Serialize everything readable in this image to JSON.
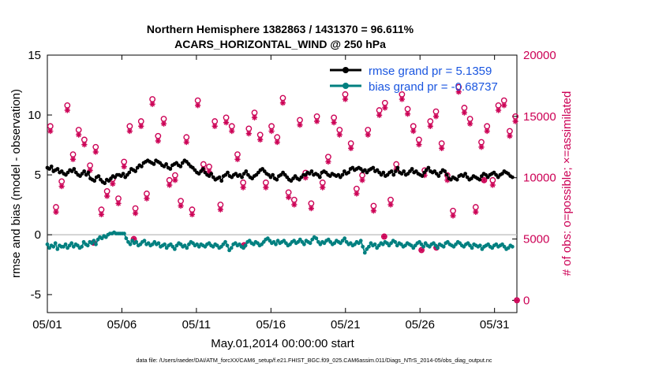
{
  "chart_data": {
    "type": "line",
    "title_line1": "Northern Hemisphere 1382863 / 1431370 = 96.611%",
    "title_line2": "ACARS_HORIZONTAL_WIND @ 250 hPa",
    "xlabel": "May.01,2014 00:00:00 start",
    "ylabel_left": "rmse and bias (model - observation)",
    "ylabel_right": "# of obs: o=possible; ×=assimilated",
    "footnote": "data file: /Users/raeder/DAI/ATM_forcXX/CAM6_setup/f.e21.FHIST_BGC.f09_025.CAM6assim.011/Diags_NTrS_2014-05/obs_diag_output.nc",
    "xlim": [
      0,
      31.5
    ],
    "ylim_left": [
      -6.5,
      15
    ],
    "ylim_right": [
      -1000,
      20000
    ],
    "xticks": [
      0,
      5,
      10,
      15,
      20,
      25,
      30
    ],
    "xtick_labels": [
      "05/01",
      "05/06",
      "05/11",
      "05/16",
      "05/21",
      "05/26",
      "05/31"
    ],
    "yticks_left": [
      -5,
      0,
      5,
      10,
      15
    ],
    "ytick_labels_left": [
      "-5",
      "0",
      "5",
      "10",
      "15"
    ],
    "yticks_right": [
      0,
      5000,
      10000,
      15000,
      20000
    ],
    "ytick_labels_right": [
      "0",
      "5000",
      "10000",
      "15000",
      "20000"
    ],
    "legend": [
      {
        "label": "rmse grand pr = 5.1359",
        "color": "#000000"
      },
      {
        "label": "bias grand pr = -0.68737",
        "color": "#008080"
      }
    ],
    "colors": {
      "rmse": "#000000",
      "bias": "#008080",
      "obs": "#cc0055",
      "label_blue": "#1a56e0",
      "zero_line": "#bbbbbb"
    },
    "series_rmse": {
      "name": "rmse",
      "y": [
        5.6,
        5.5,
        5.7,
        5.3,
        5.4,
        5.5,
        5.2,
        5.3,
        5.1,
        5.0,
        5.2,
        5.4,
        5.3,
        5.5,
        5.2,
        5.0,
        4.9,
        5.1,
        5.3,
        5.0,
        5.2,
        4.7,
        4.6,
        4.5,
        4.8,
        4.9,
        4.6,
        4.4,
        4.3,
        4.6,
        4.5,
        4.7,
        4.9,
        4.8,
        5.0,
        5.0,
        4.9,
        5.1,
        4.8,
        5.0,
        5.2,
        5.5,
        5.4,
        5.3,
        5.6,
        5.8,
        5.7,
        6.0,
        6.1,
        6.2,
        6.1,
        6.0,
        5.9,
        6.2,
        6.1,
        6.0,
        5.8,
        5.7,
        5.9,
        5.6,
        5.5,
        5.8,
        5.9,
        6.0,
        5.8,
        5.7,
        6.0,
        6.2,
        6.1,
        5.9,
        5.7,
        5.6,
        5.4,
        5.2,
        5.1,
        5.3,
        5.5,
        5.2,
        5.0,
        4.9,
        5.1,
        4.8,
        4.6,
        4.7,
        4.8,
        4.5,
        4.9,
        5.0,
        5.2,
        4.9,
        4.8,
        5.0,
        5.1,
        4.9,
        5.0,
        4.8,
        5.1,
        5.3,
        5.0,
        4.8,
        4.7,
        4.9,
        5.0,
        5.2,
        5.4,
        5.5,
        5.3,
        5.1,
        5.0,
        4.8,
        5.0,
        4.7,
        4.6,
        4.9,
        5.0,
        5.2,
        5.0,
        4.8,
        4.6,
        4.5,
        4.7,
        4.9,
        4.7,
        4.6,
        4.8,
        5.0,
        5.0,
        5.2,
        5.1,
        5.3,
        5.0,
        5.1,
        5.0,
        4.8,
        5.2,
        5.3,
        5.2,
        5.0,
        4.9,
        5.1,
        5.0,
        4.9,
        5.0,
        4.8,
        5.0,
        5.3,
        5.1,
        5.2,
        5.5,
        5.6,
        5.4,
        5.5,
        5.6,
        5.5,
        5.3,
        5.4,
        5.2,
        5.4,
        5.5,
        5.6,
        5.3,
        5.4,
        5.2,
        5.0,
        5.2,
        4.9,
        5.0,
        5.2,
        5.3,
        5.0,
        5.3,
        5.6,
        5.2,
        5.1,
        5.3,
        5.0,
        5.1,
        5.3,
        5.5,
        5.2,
        5.3,
        5.1,
        5.0,
        4.9,
        5.2,
        5.4,
        5.6,
        5.3,
        5.2,
        5.3,
        5.1,
        4.9,
        5.2,
        5.4,
        5.3,
        5.0,
        4.7,
        4.6,
        4.8,
        4.7,
        4.6,
        4.9,
        5.0,
        4.9,
        5.1,
        4.8,
        4.6,
        4.7,
        4.9,
        4.8,
        4.7,
        4.6,
        4.9,
        5.1,
        5.0,
        4.8,
        5.0,
        5.1,
        5.2,
        5.0,
        4.8,
        5.0,
        5.1,
        5.3,
        5.2,
        5.1,
        4.9,
        4.8
      ]
    },
    "series_bias": {
      "name": "bias",
      "y": [
        -0.8,
        -1.1,
        -0.9,
        -1.0,
        -0.7,
        -1.2,
        -0.9,
        -1.0,
        -1.0,
        -0.8,
        -1.1,
        -0.9,
        -0.7,
        -1.0,
        -0.8,
        -0.9,
        -1.1,
        -1.0,
        -0.6,
        -0.8,
        -0.9,
        -0.6,
        -0.7,
        -0.5,
        -0.8,
        -0.4,
        -0.2,
        -0.3,
        -0.1,
        -0.2,
        0.0,
        0.1,
        0.1,
        0.2,
        0.1,
        0.1,
        0.1,
        0.1,
        0.1,
        -0.3,
        -0.6,
        -0.8,
        -0.5,
        -0.7,
        -0.6,
        -0.9,
        -0.8,
        -0.6,
        -0.5,
        -0.8,
        -0.7,
        -0.9,
        -0.8,
        -0.6,
        -0.8,
        -0.7,
        -1.0,
        -0.9,
        -0.8,
        -1.1,
        -0.9,
        -0.8,
        -1.0,
        -1.2,
        -0.9,
        -0.7,
        -0.8,
        -1.0,
        -0.9,
        -1.1,
        -0.8,
        -0.6,
        -0.7,
        -0.9,
        -0.8,
        -1.0,
        -0.8,
        -0.9,
        -1.0,
        -0.8,
        -0.7,
        -0.9,
        -1.0,
        -0.8,
        -0.9,
        -1.1,
        -1.0,
        -0.8,
        -0.6,
        -0.9,
        -1.3,
        -1.1,
        -0.8,
        -0.7,
        -0.9,
        -0.8,
        -1.0,
        -1.1,
        -0.9,
        -0.6,
        -0.5,
        -0.7,
        -0.8,
        -0.6,
        -0.7,
        -0.9,
        -0.8,
        -0.6,
        -0.4,
        -0.3,
        -0.5,
        -0.7,
        -0.6,
        -0.8,
        -0.5,
        -0.7,
        -0.6,
        -0.5,
        -0.7,
        -0.9,
        -0.8,
        -0.6,
        -0.5,
        -0.7,
        -0.6,
        -0.4,
        -0.6,
        -0.8,
        -0.5,
        -0.6,
        -0.7,
        -0.4,
        -0.2,
        -0.3,
        -0.6,
        -0.8,
        -0.6,
        -0.7,
        -0.5,
        -0.4,
        -0.6,
        -0.8,
        -0.7,
        -0.5,
        -0.6,
        -0.7,
        -0.5,
        -0.3,
        -0.6,
        -0.8,
        -0.7,
        -0.9,
        -0.8,
        -0.6,
        -0.7,
        -0.5,
        -1.0,
        -1.5,
        -1.2,
        -1.0,
        -0.7,
        -0.9,
        -0.8,
        -1.1,
        -0.9,
        -0.7,
        -0.8,
        -0.6,
        -0.7,
        -0.9,
        -0.7,
        -0.5,
        -0.6,
        -0.9,
        -0.7,
        -0.8,
        -1.0,
        -0.9,
        -0.7,
        -0.8,
        -0.9,
        -1.1,
        -0.9,
        -0.7,
        -0.6,
        -0.8,
        -1.0,
        -0.7,
        -0.9,
        -1.0,
        -0.8,
        -0.7,
        -0.9,
        -1.1,
        -0.8,
        -0.9,
        -1.0,
        -0.7,
        -0.6,
        -0.8,
        -0.9,
        -1.0,
        -0.8,
        -0.6,
        -0.7,
        -0.9,
        -1.0,
        -0.8,
        -0.7,
        -0.9,
        -1.1,
        -0.8,
        -0.9,
        -1.0,
        -0.9,
        -1.2,
        -1.0,
        -0.9,
        -0.8,
        -1.0,
        -1.1,
        -0.9,
        -0.8,
        -1.0,
        -0.9,
        -0.8,
        -1.0,
        -1.2,
        -1.1,
        -0.9,
        -1.0
      ]
    },
    "obs_possible_y": [
      14200,
      7600,
      9700,
      15900,
      11900,
      13900,
      13100,
      11000,
      12500,
      7400,
      8900,
      9900,
      8300,
      11300,
      14200,
      7500,
      14600,
      8700,
      16400,
      13400,
      14800,
      9800,
      10200,
      8100,
      13300,
      7400,
      16300,
      11100,
      10900,
      14600,
      7800,
      14900,
      14200,
      11900,
      9600,
      14000,
      15300,
      13500,
      9600,
      14200,
      13300,
      16500,
      8800,
      8200,
      14700,
      10400,
      7900,
      15000,
      9600,
      11700,
      14900,
      13900,
      16800,
      12800,
      9100,
      10200,
      13900,
      7700,
      15500,
      16100,
      8200,
      11100,
      16800,
      15600,
      14200,
      13100,
      10600,
      14600,
      15400,
      12800,
      10200,
      7300,
      17400,
      15700,
      14800,
      7600,
      12900,
      14200,
      9800,
      15900,
      16300,
      13800,
      15000
    ],
    "obs_assimilated_y": [
      13800,
      7200,
      9300,
      15500,
      11500,
      13500,
      12700,
      10600,
      12100,
      7000,
      8500,
      9500,
      7900,
      10900,
      13800,
      7100,
      14200,
      8300,
      16000,
      13000,
      14400,
      9400,
      9800,
      7700,
      12900,
      7000,
      15900,
      10700,
      10500,
      14200,
      7400,
      14500,
      13800,
      11500,
      9200,
      13600,
      14900,
      13100,
      9200,
      13800,
      12900,
      16100,
      8400,
      7800,
      14300,
      10000,
      7500,
      14600,
      9200,
      11300,
      14500,
      13500,
      16400,
      12400,
      8700,
      9800,
      13500,
      7300,
      15100,
      15700,
      7800,
      10700,
      16400,
      15200,
      13800,
      12700,
      10200,
      14200,
      15000,
      12400,
      9800,
      6900,
      17000,
      15300,
      14400,
      7200,
      12500,
      13800,
      9400,
      15500,
      15900,
      13400,
      14600
    ],
    "obs_low_x": [
      3.1,
      5.8,
      13.2,
      22.6,
      25.1,
      26.1,
      29.3
    ],
    "obs_low_y": [
      4700,
      5000,
      4500,
      5200,
      4100,
      4300,
      9800
    ],
    "obs_end": {
      "x": 31.5,
      "y": 0
    }
  }
}
